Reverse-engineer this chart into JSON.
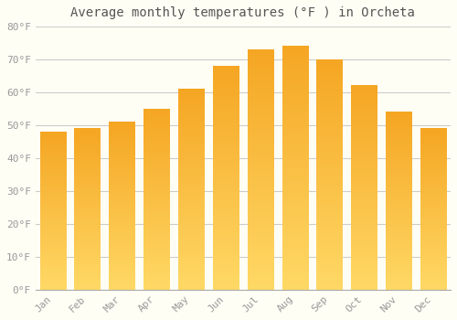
{
  "title": "Average monthly temperatures (°F ) in Orcheta",
  "months": [
    "Jan",
    "Feb",
    "Mar",
    "Apr",
    "May",
    "Jun",
    "Jul",
    "Aug",
    "Sep",
    "Oct",
    "Nov",
    "Dec"
  ],
  "values": [
    48,
    49,
    51,
    55,
    61,
    68,
    73,
    74,
    70,
    62,
    54,
    49
  ],
  "bar_color_top": "#F5A623",
  "bar_color_bottom": "#FFD966",
  "ylim": [
    0,
    80
  ],
  "yticks": [
    0,
    10,
    20,
    30,
    40,
    50,
    60,
    70,
    80
  ],
  "ytick_labels": [
    "0°F",
    "10°F",
    "20°F",
    "30°F",
    "40°F",
    "50°F",
    "60°F",
    "70°F",
    "80°F"
  ],
  "background_color": "#FFFEF5",
  "grid_color": "#CCCCCC",
  "title_fontsize": 10,
  "tick_fontsize": 8,
  "font_color": "#999999"
}
